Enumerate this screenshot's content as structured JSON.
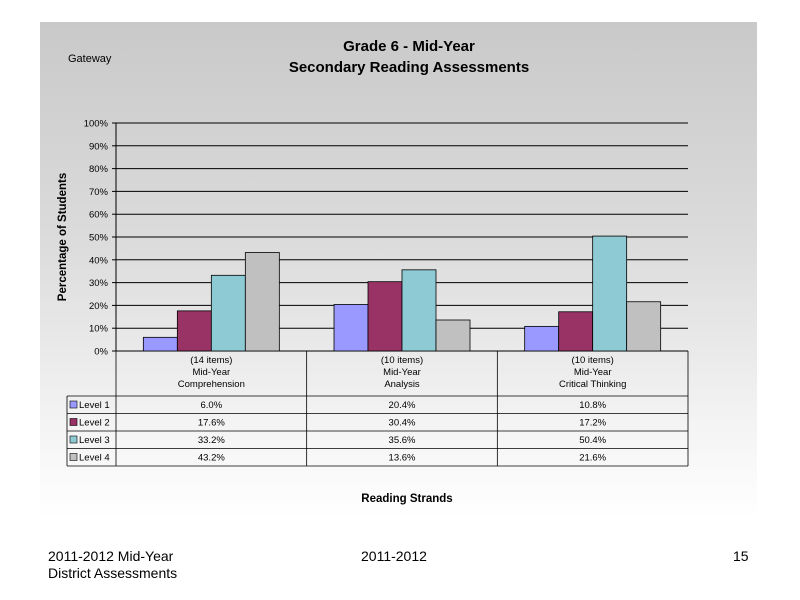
{
  "header": {
    "corner_label": "Gateway",
    "title_line1": "Grade 6 - Mid-Year",
    "title_line2": "Secondary Reading Assessments"
  },
  "chart_data": {
    "type": "bar",
    "title": "Grade 6 - Mid-Year Secondary Reading Assessments",
    "xlabel": "Reading Strands",
    "ylabel": "Percentage of Students",
    "ylim": [
      0,
      100
    ],
    "yticks": [
      "100%",
      "90%",
      "80%",
      "70%",
      "60%",
      "50%",
      "40%",
      "30%",
      "20%",
      "10%",
      "0%"
    ],
    "grid": true,
    "legend_placement": "table-left",
    "categories": [
      [
        "(14 items)",
        "Mid-Year",
        "Comprehension"
      ],
      [
        "(10 items)",
        "Mid-Year",
        "Analysis"
      ],
      [
        "(10 items)",
        "Mid-Year",
        "Critical Thinking"
      ]
    ],
    "series": [
      {
        "name": "Level 1",
        "color": "#9999ff",
        "values": [
          6.0,
          20.4,
          10.8
        ],
        "labels": [
          "6.0%",
          "20.4%",
          "10.8%"
        ]
      },
      {
        "name": "Level 2",
        "color": "#993366",
        "values": [
          17.6,
          30.4,
          17.2
        ],
        "labels": [
          "17.6%",
          "30.4%",
          "17.2%"
        ]
      },
      {
        "name": "Level 3",
        "color": "#8ecad4",
        "values": [
          33.2,
          35.6,
          50.4
        ],
        "labels": [
          "33.2%",
          "35.6%",
          "50.4%"
        ]
      },
      {
        "name": "Level 4",
        "color": "#c0c0c0",
        "values": [
          43.2,
          13.6,
          21.6
        ],
        "labels": [
          "43.2%",
          "13.6%",
          "21.6%"
        ]
      }
    ]
  },
  "footer": {
    "left_line1": "2011-2012  Mid-Year",
    "left_line2": "District Assessments",
    "center": "2011-2012",
    "page_number": "15"
  }
}
